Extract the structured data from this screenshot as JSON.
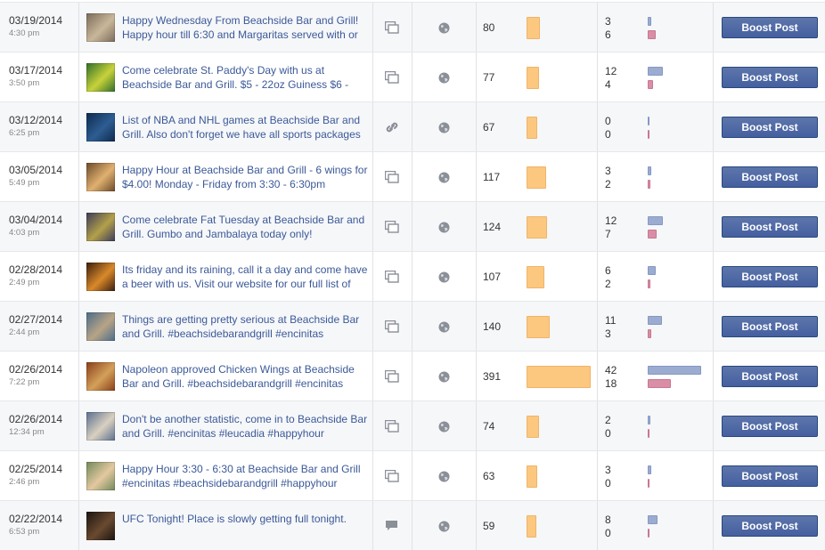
{
  "boost_label": "Boost Post",
  "colors": {
    "reach_bar": "#fcc880",
    "engagement_a": "#9cacd0",
    "engagement_b": "#d98ea6",
    "link": "#3b5998",
    "button": "#4a67a4"
  },
  "bar_scale": {
    "reach_max": 391,
    "engagement_max": 42
  },
  "posts": [
    {
      "date": "03/19/2014",
      "time": "4:30 pm",
      "text": "Happy Wednesday From Beachside Bar and Grill! Happy hour till 6:30 and Margaritas served with or",
      "type_icon": "photo-icon",
      "targeting_icon": "globe-icon",
      "reach": "80",
      "engagement_a": "3",
      "engagement_b": "6",
      "thumb_colors": [
        "#7a6b5a",
        "#c9b79a"
      ]
    },
    {
      "date": "03/17/2014",
      "time": "3:50 pm",
      "text": "Come celebrate St. Paddy's Day with us at Beachside Bar and Grill. $5 - 22oz Guiness $6 -",
      "type_icon": "photo-icon",
      "targeting_icon": "globe-icon",
      "reach": "77",
      "engagement_a": "12",
      "engagement_b": "4",
      "thumb_colors": [
        "#2f6e2a",
        "#c8d23a"
      ]
    },
    {
      "date": "03/12/2014",
      "time": "6:25 pm",
      "text": "List of NBA and NHL games at Beachside Bar and Grill. Also don't forget we have all sports packages",
      "type_icon": "link-icon",
      "targeting_icon": "globe-icon",
      "reach": "67",
      "engagement_a": "0",
      "engagement_b": "0",
      "thumb_colors": [
        "#0d2a4e",
        "#2e5d93"
      ]
    },
    {
      "date": "03/05/2014",
      "time": "5:49 pm",
      "text": "Happy Hour at Beachside Bar and Grill - 6 wings for $4.00! Monday - Friday from 3:30 - 6:30pm",
      "type_icon": "photo-icon",
      "targeting_icon": "globe-icon",
      "reach": "117",
      "engagement_a": "3",
      "engagement_b": "2",
      "thumb_colors": [
        "#6b4a2a",
        "#e0b070"
      ]
    },
    {
      "date": "03/04/2014",
      "time": "4:03 pm",
      "text": "Come celebrate Fat Tuesday at Beachside Bar and Grill. Gumbo and Jambalaya today only!",
      "type_icon": "photo-icon",
      "targeting_icon": "globe-icon",
      "reach": "124",
      "engagement_a": "12",
      "engagement_b": "7",
      "thumb_colors": [
        "#3b3a5a",
        "#b3a04a"
      ]
    },
    {
      "date": "02/28/2014",
      "time": "2:49 pm",
      "text": "Its friday and its raining, call it a day and come have a beer with us. Visit our website for our full list of",
      "type_icon": "photo-icon",
      "targeting_icon": "globe-icon",
      "reach": "107",
      "engagement_a": "6",
      "engagement_b": "2",
      "thumb_colors": [
        "#3a1e0e",
        "#d9892a"
      ]
    },
    {
      "date": "02/27/2014",
      "time": "2:44 pm",
      "text": "Things are getting pretty serious at Beachside Bar and Grill. #beachsidebarandgrill #encinitas",
      "type_icon": "photo-icon",
      "targeting_icon": "globe-icon",
      "reach": "140",
      "engagement_a": "11",
      "engagement_b": "3",
      "thumb_colors": [
        "#4a6c8a",
        "#b8a486"
      ]
    },
    {
      "date": "02/26/2014",
      "time": "7:22 pm",
      "text": "Napoleon approved Chicken Wings at Beachside Bar and Grill. #beachsidebarandgrill #encinitas",
      "type_icon": "photo-icon",
      "targeting_icon": "globe-icon",
      "reach": "391",
      "engagement_a": "42",
      "engagement_b": "18",
      "thumb_colors": [
        "#8a3e1a",
        "#d3a05a"
      ]
    },
    {
      "date": "02/26/2014",
      "time": "12:34 pm",
      "text": "Don't be another statistic, come in to Beachside Bar and Grill. #encinitas #leucadia #happyhour",
      "type_icon": "photo-icon",
      "targeting_icon": "globe-icon",
      "reach": "74",
      "engagement_a": "2",
      "engagement_b": "0",
      "thumb_colors": [
        "#5a6f8e",
        "#d9d0c0"
      ]
    },
    {
      "date": "02/25/2014",
      "time": "2:46 pm",
      "text": "Happy Hour 3:30 - 6:30 at Beachside Bar and Grill #encinitas #beachsidebarandgrill #happyhour",
      "type_icon": "photo-icon",
      "targeting_icon": "globe-icon",
      "reach": "63",
      "engagement_a": "3",
      "engagement_b": "0",
      "thumb_colors": [
        "#6f8a5a",
        "#e4c8a0"
      ]
    },
    {
      "date": "02/22/2014",
      "time": "6:53 pm",
      "text": "UFC Tonight! Place is slowly getting full tonight.",
      "type_icon": "status-icon",
      "targeting_icon": "globe-icon",
      "reach": "59",
      "engagement_a": "8",
      "engagement_b": "0",
      "thumb_colors": [
        "#1a1410",
        "#6a4a30"
      ]
    }
  ]
}
